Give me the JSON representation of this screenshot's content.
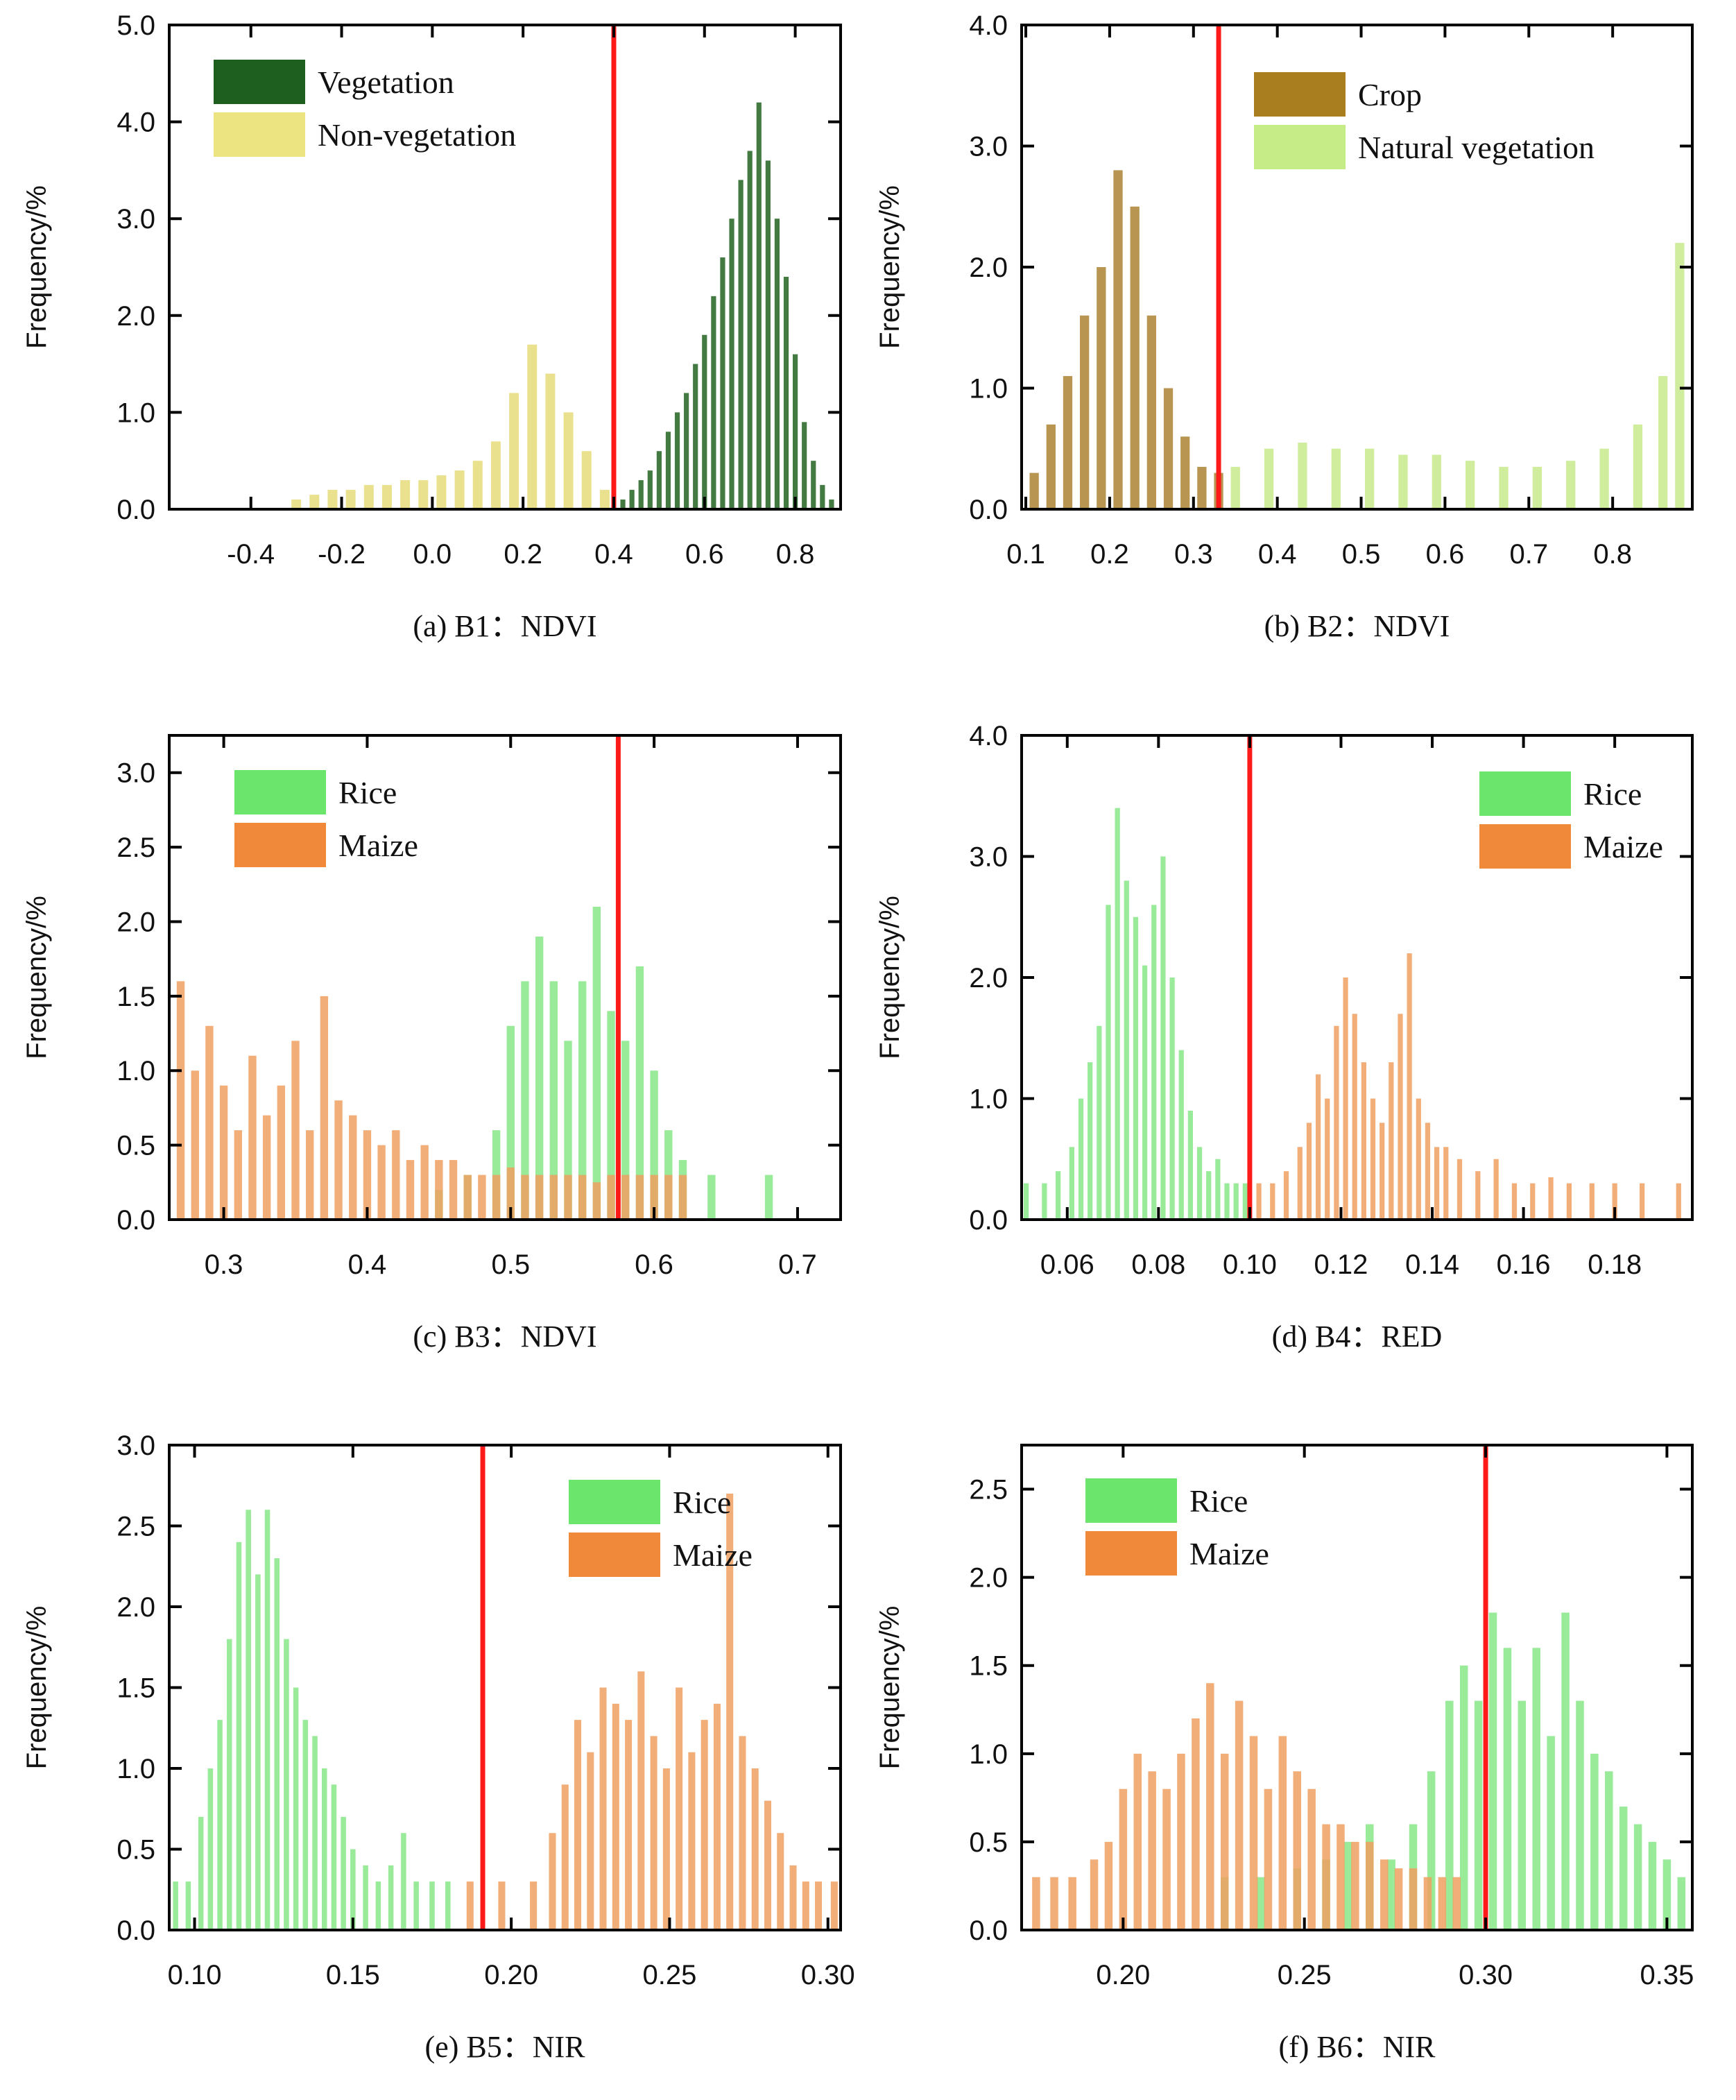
{
  "chart_data": [
    {
      "panel": "a",
      "type": "bar",
      "title": "(a) B1：NDVI",
      "xlabel": "",
      "ylabel": "Frequency/%",
      "xlim": [
        -0.58,
        0.9
      ],
      "ylim": [
        0,
        5.0
      ],
      "xticks": [
        "-0.4",
        "-0.2",
        "0.0",
        "0.2",
        "0.4",
        "0.6",
        "0.8"
      ],
      "yticks": [
        "0.0",
        "1.0",
        "2.0",
        "3.0",
        "4.0",
        "5.0"
      ],
      "threshold": 0.4,
      "legend_position": "top-left",
      "series": [
        {
          "name": "Vegetation",
          "color": "#2e6b2e",
          "legend_color": "#1e5e1e",
          "centers": [
            0.42,
            0.44,
            0.46,
            0.48,
            0.5,
            0.52,
            0.54,
            0.56,
            0.58,
            0.6,
            0.62,
            0.64,
            0.66,
            0.68,
            0.7,
            0.72,
            0.74,
            0.76,
            0.78,
            0.8,
            0.82,
            0.84,
            0.86,
            0.88
          ],
          "values": [
            0.1,
            0.2,
            0.3,
            0.4,
            0.6,
            0.8,
            1.0,
            1.2,
            1.5,
            1.8,
            2.2,
            2.6,
            3.0,
            3.4,
            3.7,
            4.2,
            3.6,
            3.0,
            2.4,
            1.6,
            0.9,
            0.5,
            0.25,
            0.1
          ]
        },
        {
          "name": "Non-vegetation",
          "color": "#e6dc7a",
          "legend_color": "#ece480",
          "centers": [
            -0.3,
            -0.26,
            -0.22,
            -0.18,
            -0.14,
            -0.1,
            -0.06,
            -0.02,
            0.02,
            0.06,
            0.1,
            0.14,
            0.18,
            0.22,
            0.26,
            0.3,
            0.34,
            0.38
          ],
          "values": [
            0.1,
            0.15,
            0.2,
            0.2,
            0.25,
            0.25,
            0.3,
            0.3,
            0.35,
            0.4,
            0.5,
            0.7,
            1.2,
            1.7,
            1.4,
            1.0,
            0.6,
            0.2
          ]
        }
      ]
    },
    {
      "panel": "b",
      "type": "bar",
      "title": "(b) B2：NDVI",
      "xlabel": "",
      "ylabel": "Frequency/%",
      "xlim": [
        0.095,
        0.895
      ],
      "ylim": [
        0,
        4.0
      ],
      "xticks": [
        "0.1",
        "0.2",
        "0.3",
        "0.4",
        "0.5",
        "0.6",
        "0.7",
        "0.8"
      ],
      "yticks": [
        "0.0",
        "1.0",
        "2.0",
        "3.0",
        "4.0"
      ],
      "threshold": 0.33,
      "legend_position": "top-right",
      "series": [
        {
          "name": "Crop",
          "color": "#b08a3e",
          "legend_color": "#a97e1e",
          "centers": [
            0.11,
            0.13,
            0.15,
            0.17,
            0.19,
            0.21,
            0.23,
            0.25,
            0.27,
            0.29,
            0.31,
            0.33
          ],
          "values": [
            0.3,
            0.7,
            1.1,
            1.6,
            2.0,
            2.8,
            2.5,
            1.6,
            1.0,
            0.6,
            0.35,
            0.3
          ]
        },
        {
          "name": "Natural vegetation",
          "color": "#c8ea8c",
          "legend_color": "#c6ec88",
          "centers": [
            0.35,
            0.39,
            0.43,
            0.47,
            0.51,
            0.55,
            0.59,
            0.63,
            0.67,
            0.71,
            0.75,
            0.79,
            0.83,
            0.86,
            0.88
          ],
          "values": [
            0.35,
            0.5,
            0.55,
            0.5,
            0.5,
            0.45,
            0.45,
            0.4,
            0.35,
            0.35,
            0.4,
            0.5,
            0.7,
            1.1,
            2.2
          ]
        }
      ]
    },
    {
      "panel": "c",
      "type": "bar",
      "title": "(c) B3：NDVI",
      "xlabel": "",
      "ylabel": "Frequency/%",
      "xlim": [
        0.262,
        0.73
      ],
      "ylim": [
        0,
        3.25
      ],
      "xticks": [
        "0.3",
        "0.4",
        "0.5",
        "0.6",
        "0.7"
      ],
      "yticks": [
        "0.0",
        "0.5",
        "1.0",
        "1.5",
        "2.0",
        "2.5",
        "3.0"
      ],
      "threshold": 0.575,
      "legend_position": "top-left",
      "series": [
        {
          "name": "Rice",
          "color": "#8ee88e",
          "legend_color": "#6ce56c",
          "centers": [
            0.45,
            0.47,
            0.49,
            0.5,
            0.51,
            0.52,
            0.53,
            0.54,
            0.55,
            0.56,
            0.57,
            0.58,
            0.59,
            0.6,
            0.61,
            0.62,
            0.64,
            0.68
          ],
          "values": [
            0.2,
            0.3,
            0.6,
            1.3,
            1.6,
            1.9,
            1.6,
            1.2,
            1.6,
            2.1,
            1.4,
            1.2,
            1.7,
            1.0,
            0.6,
            0.4,
            0.3,
            0.3
          ]
        },
        {
          "name": "Maize",
          "color": "#f0a060",
          "legend_color": "#f08a3a",
          "centers": [
            0.27,
            0.28,
            0.29,
            0.3,
            0.31,
            0.32,
            0.33,
            0.34,
            0.35,
            0.36,
            0.37,
            0.38,
            0.39,
            0.4,
            0.41,
            0.42,
            0.43,
            0.44,
            0.45,
            0.46,
            0.47,
            0.48,
            0.49,
            0.5,
            0.51,
            0.52,
            0.53,
            0.54,
            0.55,
            0.56,
            0.57,
            0.58,
            0.59,
            0.6,
            0.61,
            0.62
          ],
          "values": [
            1.6,
            1.0,
            1.3,
            0.9,
            0.6,
            1.1,
            0.7,
            0.9,
            1.2,
            0.6,
            1.5,
            0.8,
            0.7,
            0.6,
            0.5,
            0.6,
            0.4,
            0.5,
            0.4,
            0.4,
            0.3,
            0.3,
            0.3,
            0.35,
            0.3,
            0.3,
            0.3,
            0.3,
            0.3,
            0.25,
            0.3,
            0.3,
            0.3,
            0.3,
            0.3,
            0.3
          ]
        }
      ]
    },
    {
      "panel": "d",
      "type": "bar",
      "title": "(d) B4：RED",
      "xlabel": "",
      "ylabel": "Frequency/%",
      "xlim": [
        0.05,
        0.197
      ],
      "ylim": [
        0,
        4.0
      ],
      "xticks": [
        "0.06",
        "0.08",
        "0.10",
        "0.12",
        "0.14",
        "0.16",
        "0.18"
      ],
      "yticks": [
        "0.0",
        "1.0",
        "2.0",
        "3.0",
        "4.0"
      ],
      "threshold": 0.1,
      "legend_position": "top-right",
      "series": [
        {
          "name": "Rice",
          "color": "#8ee88e",
          "legend_color": "#6ce56c",
          "centers": [
            0.051,
            0.055,
            0.058,
            0.061,
            0.063,
            0.065,
            0.067,
            0.069,
            0.071,
            0.073,
            0.075,
            0.077,
            0.079,
            0.081,
            0.083,
            0.085,
            0.087,
            0.089,
            0.091,
            0.093,
            0.095,
            0.097,
            0.099
          ],
          "values": [
            0.3,
            0.3,
            0.4,
            0.6,
            1.0,
            1.3,
            1.6,
            2.6,
            3.4,
            2.8,
            2.5,
            2.1,
            2.6,
            3.0,
            2.0,
            1.4,
            0.9,
            0.6,
            0.4,
            0.5,
            0.3,
            0.3,
            0.3
          ]
        },
        {
          "name": "Maize",
          "color": "#f0a060",
          "legend_color": "#f08a3a",
          "centers": [
            0.102,
            0.105,
            0.108,
            0.111,
            0.113,
            0.115,
            0.117,
            0.119,
            0.121,
            0.123,
            0.125,
            0.127,
            0.129,
            0.131,
            0.133,
            0.135,
            0.137,
            0.139,
            0.141,
            0.143,
            0.146,
            0.15,
            0.154,
            0.158,
            0.162,
            0.166,
            0.17,
            0.175,
            0.18,
            0.186,
            0.194
          ],
          "values": [
            0.3,
            0.3,
            0.4,
            0.6,
            0.8,
            1.2,
            1.0,
            1.6,
            2.0,
            1.7,
            1.3,
            1.0,
            0.8,
            1.3,
            1.7,
            2.2,
            1.0,
            0.8,
            0.6,
            0.6,
            0.5,
            0.4,
            0.5,
            0.3,
            0.3,
            0.35,
            0.3,
            0.3,
            0.3,
            0.3,
            0.3
          ]
        }
      ]
    },
    {
      "panel": "e",
      "type": "bar",
      "title": "(e) B5：NIR",
      "xlabel": "",
      "ylabel": "Frequency/%",
      "xlim": [
        0.092,
        0.304
      ],
      "ylim": [
        0,
        3.0
      ],
      "xticks": [
        "0.10",
        "0.15",
        "0.20",
        "0.25",
        "0.30"
      ],
      "yticks": [
        "0.0",
        "0.5",
        "1.0",
        "1.5",
        "2.0",
        "2.5",
        "3.0"
      ],
      "threshold": 0.191,
      "legend_position": "top-right",
      "series": [
        {
          "name": "Rice",
          "color": "#8ee88e",
          "legend_color": "#6ce56c",
          "centers": [
            0.094,
            0.098,
            0.102,
            0.105,
            0.108,
            0.111,
            0.114,
            0.117,
            0.12,
            0.123,
            0.126,
            0.129,
            0.132,
            0.135,
            0.138,
            0.141,
            0.144,
            0.147,
            0.15,
            0.154,
            0.158,
            0.162,
            0.166,
            0.17,
            0.175,
            0.18
          ],
          "values": [
            0.3,
            0.3,
            0.7,
            1.0,
            1.3,
            1.8,
            2.4,
            2.6,
            2.2,
            2.6,
            2.3,
            1.8,
            1.5,
            1.3,
            1.2,
            1.0,
            0.9,
            0.7,
            0.5,
            0.4,
            0.3,
            0.4,
            0.6,
            0.3,
            0.3,
            0.3
          ]
        },
        {
          "name": "Maize",
          "color": "#f0a060",
          "legend_color": "#f08a3a",
          "centers": [
            0.187,
            0.197,
            0.207,
            0.213,
            0.217,
            0.221,
            0.225,
            0.229,
            0.233,
            0.237,
            0.241,
            0.245,
            0.249,
            0.253,
            0.257,
            0.261,
            0.265,
            0.269,
            0.273,
            0.277,
            0.281,
            0.285,
            0.289,
            0.293,
            0.297,
            0.302
          ],
          "values": [
            0.3,
            0.3,
            0.3,
            0.6,
            0.9,
            1.3,
            1.1,
            1.5,
            1.4,
            1.3,
            1.6,
            1.2,
            1.0,
            1.5,
            1.1,
            1.3,
            1.4,
            2.7,
            1.2,
            1.0,
            0.8,
            0.6,
            0.4,
            0.3,
            0.3,
            0.3
          ]
        }
      ]
    },
    {
      "panel": "f",
      "type": "bar",
      "title": "(f) B6：NIR",
      "xlabel": "",
      "ylabel": "Frequency/%",
      "xlim": [
        0.172,
        0.357
      ],
      "ylim": [
        0,
        2.75
      ],
      "xticks": [
        "0.20",
        "0.25",
        "0.30",
        "0.35"
      ],
      "yticks": [
        "0.0",
        "0.5",
        "1.0",
        "1.5",
        "2.0",
        "2.5"
      ],
      "threshold": 0.3,
      "legend_position": "top-left",
      "series": [
        {
          "name": "Rice",
          "color": "#8ee88e",
          "legend_color": "#6ce56c",
          "centers": [
            0.228,
            0.238,
            0.248,
            0.256,
            0.262,
            0.268,
            0.274,
            0.28,
            0.285,
            0.29,
            0.294,
            0.298,
            0.302,
            0.306,
            0.31,
            0.314,
            0.318,
            0.322,
            0.326,
            0.33,
            0.334,
            0.338,
            0.342,
            0.346,
            0.35,
            0.354
          ],
          "values": [
            0.3,
            0.3,
            0.35,
            0.4,
            0.5,
            0.6,
            0.4,
            0.6,
            0.9,
            1.3,
            1.5,
            1.3,
            1.8,
            1.6,
            1.3,
            1.6,
            1.1,
            1.8,
            1.3,
            1.0,
            0.9,
            0.7,
            0.6,
            0.5,
            0.4,
            0.3
          ]
        },
        {
          "name": "Maize",
          "color": "#f0a060",
          "legend_color": "#f08a3a",
          "centers": [
            0.176,
            0.181,
            0.186,
            0.192,
            0.196,
            0.2,
            0.204,
            0.208,
            0.212,
            0.216,
            0.22,
            0.224,
            0.228,
            0.232,
            0.236,
            0.24,
            0.244,
            0.248,
            0.252,
            0.256,
            0.26,
            0.264,
            0.268,
            0.272,
            0.276,
            0.28,
            0.284,
            0.288,
            0.292
          ],
          "values": [
            0.3,
            0.3,
            0.3,
            0.4,
            0.5,
            0.8,
            1.0,
            0.9,
            0.8,
            1.0,
            1.2,
            1.4,
            1.0,
            1.3,
            1.1,
            0.8,
            1.1,
            0.9,
            0.8,
            0.6,
            0.6,
            0.5,
            0.5,
            0.4,
            0.35,
            0.35,
            0.3,
            0.3,
            0.3
          ]
        }
      ]
    }
  ]
}
